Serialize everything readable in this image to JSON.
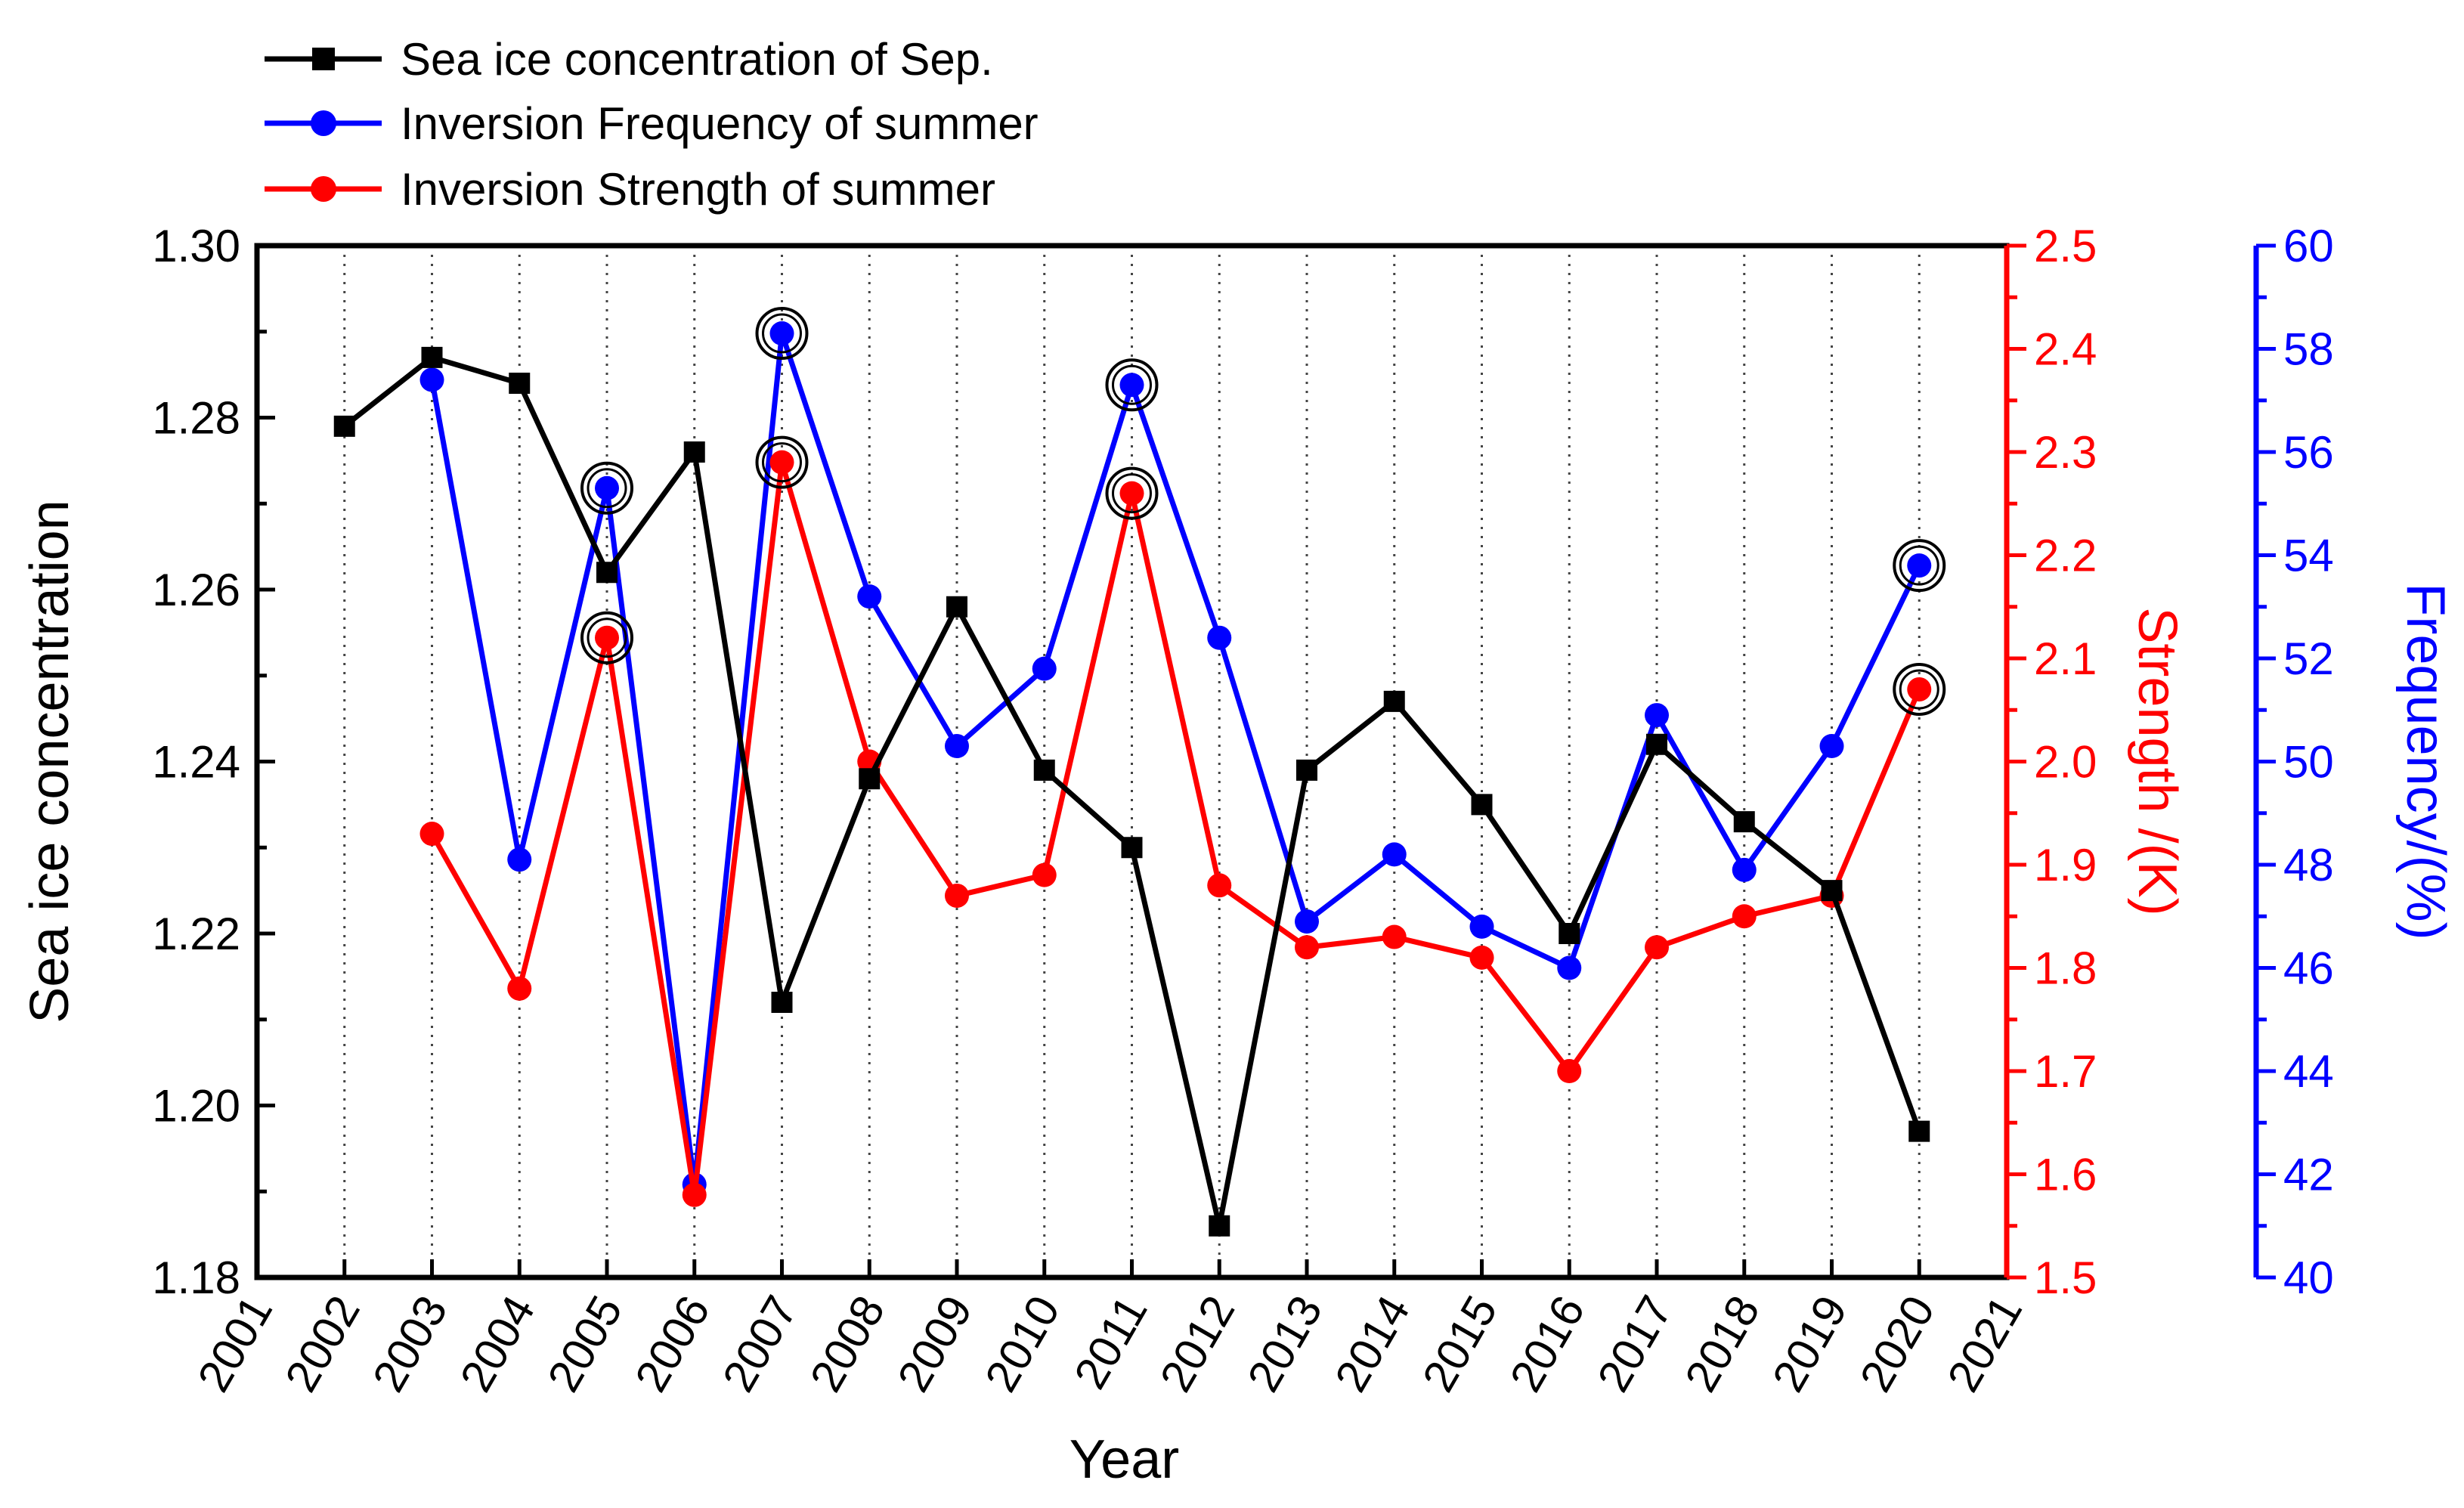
{
  "chart_data": {
    "type": "line",
    "x_axis": {
      "label": "Year",
      "range": [
        2001,
        2021
      ],
      "ticks": [
        "2001",
        "2002",
        "2003",
        "2004",
        "2005",
        "2006",
        "2007",
        "2008",
        "2009",
        "2010",
        "2011",
        "2012",
        "2013",
        "2014",
        "2015",
        "2016",
        "2017",
        "2018",
        "2019",
        "2020",
        "2021"
      ]
    },
    "y_axes": {
      "left": {
        "label": "Sea ice concentration",
        "range": [
          1.18,
          1.3
        ],
        "ticks": [
          "1.18",
          "1.20",
          "1.22",
          "1.24",
          "1.26",
          "1.28",
          "1.30"
        ],
        "color": "#000000"
      },
      "right_strength": {
        "label": "Strength /(K)",
        "range": [
          1.5,
          2.5
        ],
        "ticks": [
          "1.5",
          "1.6",
          "1.7",
          "1.8",
          "1.9",
          "2.0",
          "2.1",
          "2.2",
          "2.3",
          "2.4",
          "2.5"
        ],
        "color": "#ff0000"
      },
      "right_frequency": {
        "label": "Frequency/(%)",
        "range": [
          40,
          60
        ],
        "ticks": [
          "40",
          "42",
          "44",
          "46",
          "48",
          "50",
          "52",
          "54",
          "56",
          "58",
          "60"
        ],
        "color": "#0000ff"
      }
    },
    "series": [
      {
        "name": "Sea ice concentration of Sep.",
        "axis": "left",
        "color": "#000000",
        "marker": "square",
        "x": [
          2002,
          2003,
          2004,
          2005,
          2006,
          2007,
          2008,
          2009,
          2010,
          2011,
          2012,
          2013,
          2014,
          2015,
          2016,
          2017,
          2018,
          2019,
          2020
        ],
        "values": [
          1.279,
          1.287,
          1.284,
          1.262,
          1.276,
          1.212,
          1.238,
          1.258,
          1.239,
          1.23,
          1.186,
          1.239,
          1.247,
          1.235,
          1.22,
          1.242,
          1.233,
          1.225,
          1.197
        ]
      },
      {
        "name": "Inversion Frequency of summer",
        "axis": "right_frequency",
        "color": "#0000ff",
        "marker": "circle",
        "x": [
          2003,
          2004,
          2005,
          2006,
          2007,
          2008,
          2009,
          2010,
          2011,
          2012,
          2013,
          2014,
          2015,
          2016,
          2017,
          2018,
          2019,
          2020
        ],
        "values": [
          57.4,
          48.1,
          55.3,
          41.8,
          58.3,
          53.2,
          50.3,
          51.8,
          57.3,
          52.4,
          46.9,
          48.2,
          46.8,
          46.0,
          50.9,
          47.9,
          50.3,
          53.8
        ]
      },
      {
        "name": "Inversion Strength of summer",
        "axis": "right_strength",
        "color": "#ff0000",
        "marker": "circle",
        "x": [
          2003,
          2004,
          2005,
          2006,
          2007,
          2008,
          2009,
          2010,
          2011,
          2012,
          2013,
          2014,
          2015,
          2016,
          2017,
          2018,
          2019,
          2020
        ],
        "values": [
          1.93,
          1.78,
          2.12,
          1.58,
          2.29,
          2.0,
          1.87,
          1.89,
          2.26,
          1.88,
          1.82,
          1.83,
          1.81,
          1.7,
          1.82,
          1.85,
          1.87,
          2.07
        ]
      }
    ],
    "highlighted_points": [
      {
        "series": "Inversion Frequency of summer",
        "x": 2005,
        "value": 55.3
      },
      {
        "series": "Inversion Frequency of summer",
        "x": 2007,
        "value": 58.3
      },
      {
        "series": "Inversion Frequency of summer",
        "x": 2011,
        "value": 57.3
      },
      {
        "series": "Inversion Frequency of summer",
        "x": 2020,
        "value": 53.8
      },
      {
        "series": "Inversion Strength of summer",
        "x": 2005,
        "value": 2.12
      },
      {
        "series": "Inversion Strength of summer",
        "x": 2007,
        "value": 2.29
      },
      {
        "series": "Inversion Strength of summer",
        "x": 2011,
        "value": 2.26
      },
      {
        "series": "Inversion Strength of summer",
        "x": 2020,
        "value": 2.07
      }
    ],
    "legend": {
      "position": "top-left",
      "entries": [
        "Sea ice concentration of Sep.",
        "Inversion Frequency of summer",
        "Inversion Strength of summer"
      ]
    },
    "grid": "vertical-dotted"
  }
}
